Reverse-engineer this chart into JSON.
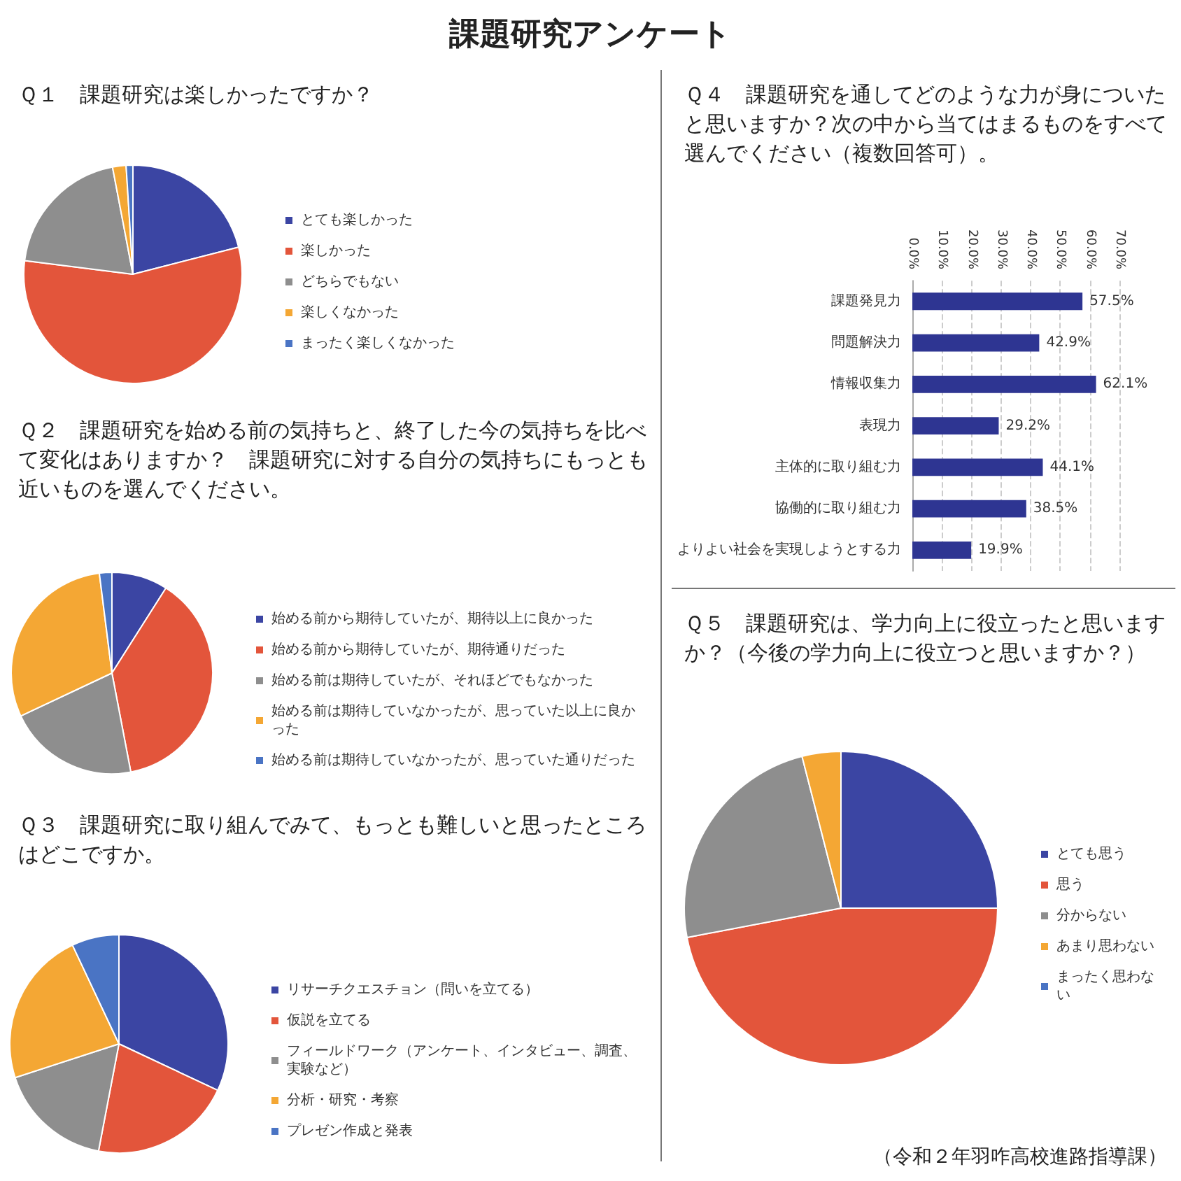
{
  "chart_data": [
    {
      "type": "other",
      "title": "課題研究アンケート"
    },
    {
      "type": "pie",
      "title": "Ｑ１　課題研究は楽しかったですか？",
      "categories": [
        "とても楽しかった",
        "楽しかった",
        "どちらでもない",
        "楽しくなかった",
        "まったく楽しくなかった"
      ],
      "values": [
        21,
        56,
        20,
        2,
        1
      ],
      "colors": [
        "#3b45a3",
        "#e3553b",
        "#8e8e8e",
        "#f4a734",
        "#4a74c4"
      ],
      "legend": "right"
    },
    {
      "type": "pie",
      "title": "Ｑ２　課題研究を始める前の気持ちと、終了した今の気持ちを比べて変化はありますか？　課題研究に対する自分の気持ちにもっとも近いものを選んでください。",
      "categories": [
        "始める前から期待していたが、期待以上に良かった",
        "始める前から期待していたが、期待通りだった",
        "始める前は期待していたが、それほどでもなかった",
        "始める前は期待していなかったが、思っていた以上に良かった",
        "始める前は期待していなかったが、思っていた通りだった"
      ],
      "values": [
        9,
        38,
        21,
        30,
        2
      ],
      "colors": [
        "#3b45a3",
        "#e3553b",
        "#8e8e8e",
        "#f4a734",
        "#4a74c4"
      ],
      "legend": "right"
    },
    {
      "type": "pie",
      "title": "Ｑ３　課題研究に取り組んでみて、もっとも難しいと思ったところはどこですか。",
      "categories": [
        "リサーチクエスチョン（問いを立てる）",
        "仮説を立てる",
        "フィールドワーク（アンケート、インタビュー、調査、実験など）",
        "分析・研究・考察",
        "プレゼン作成と発表"
      ],
      "values": [
        32,
        21,
        17,
        23,
        7
      ],
      "colors": [
        "#3b45a3",
        "#e3553b",
        "#8e8e8e",
        "#f4a734",
        "#4a74c4"
      ],
      "legend": "right"
    },
    {
      "type": "bar",
      "orientation": "horizontal",
      "title": "Ｑ４　課題研究を通してどのような力が身についたと思いますか？次の中から当てはまるものをすべて選んでください（複数回答可）。",
      "categories": [
        "課題発見力",
        "問題解決力",
        "情報収集力",
        "表現力",
        "主体的に取り組む力",
        "協働的に取り組む力",
        "よりよい社会を実現しようとする力"
      ],
      "values": [
        57.5,
        42.9,
        62.1,
        29.2,
        44.1,
        38.5,
        19.9
      ],
      "value_labels": [
        "57.5%",
        "42.9%",
        "62.1%",
        "29.2%",
        "44.1%",
        "38.5%",
        "19.9%"
      ],
      "color": "#2e3592",
      "xlim": [
        0,
        70
      ],
      "xticks": [
        {
          "value": 0,
          "label": "0.0%"
        },
        {
          "value": 10,
          "label": "10.0%"
        },
        {
          "value": 20,
          "label": "20.0%"
        },
        {
          "value": 30,
          "label": "30.0%"
        },
        {
          "value": 40,
          "label": "40.0%"
        },
        {
          "value": 50,
          "label": "50.0%"
        },
        {
          "value": 60,
          "label": "60.0%"
        },
        {
          "value": 70,
          "label": "70.0%"
        }
      ],
      "grid": "x"
    },
    {
      "type": "pie",
      "title": "Ｑ５　課題研究は、学力向上に役立ったと思いますか？（今後の学力向上に役立つと思いますか？）",
      "categories": [
        "とても思う",
        "思う",
        "分からない",
        "あまり思わない",
        "まったく思わない"
      ],
      "values": [
        25,
        47,
        24,
        4,
        0
      ],
      "colors": [
        "#3b45a3",
        "#e3553b",
        "#8e8e8e",
        "#f4a734",
        "#4a74c4"
      ],
      "legend": "right",
      "annotations": [
        "（令和２年羽咋高校進路指導課）"
      ]
    }
  ]
}
